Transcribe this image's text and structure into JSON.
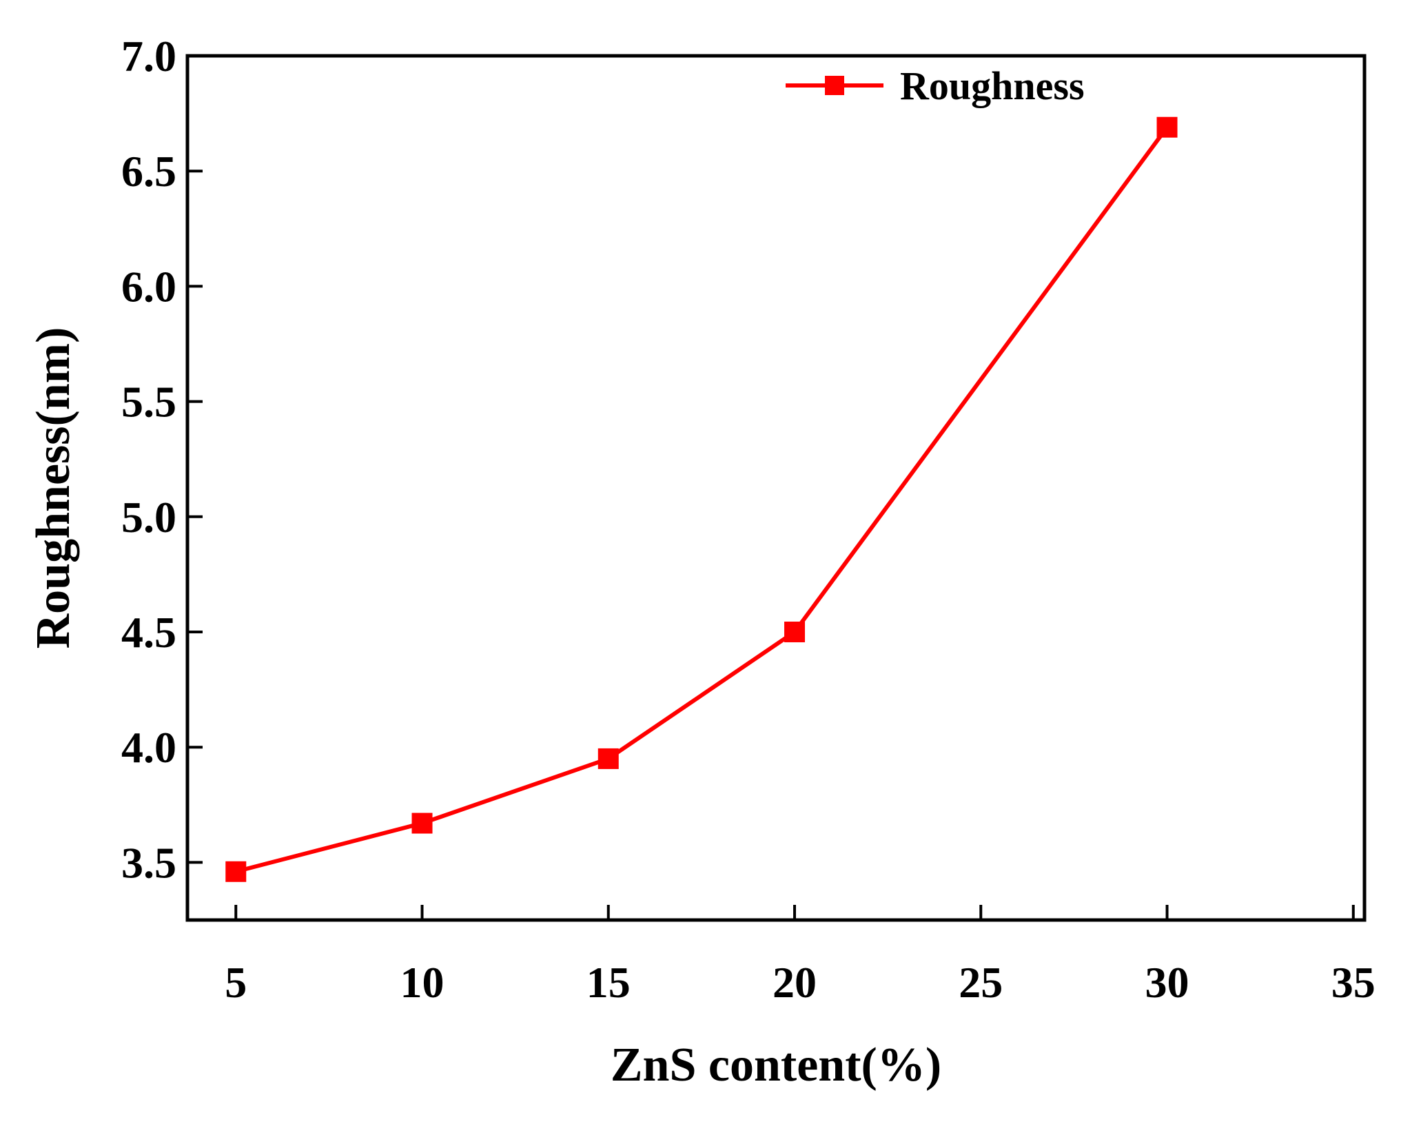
{
  "chart_data": {
    "type": "line",
    "xlabel": "ZnS content(%)",
    "ylabel": "Roughness(nm)",
    "xlim": [
      3.7,
      35.3
    ],
    "ylim": [
      3.25,
      7.0
    ],
    "xticks": [
      5,
      10,
      15,
      20,
      25,
      30,
      35
    ],
    "yticks": [
      3.5,
      4.0,
      4.5,
      5.0,
      5.5,
      6.0,
      6.5,
      7.0
    ],
    "xtick_labels": [
      "5",
      "10",
      "15",
      "20",
      "25",
      "30",
      "35"
    ],
    "ytick_labels": [
      "3.5",
      "4.0",
      "4.5",
      "5.0",
      "5.5",
      "6.0",
      "6.5",
      "7.0"
    ],
    "grid": false,
    "legend_position": "top-right",
    "series": [
      {
        "name": "Roughness",
        "color": "#ff0000",
        "marker": "square",
        "x": [
          5,
          10,
          15,
          20,
          30
        ],
        "y": [
          3.46,
          3.67,
          3.95,
          4.5,
          6.69
        ]
      }
    ]
  }
}
